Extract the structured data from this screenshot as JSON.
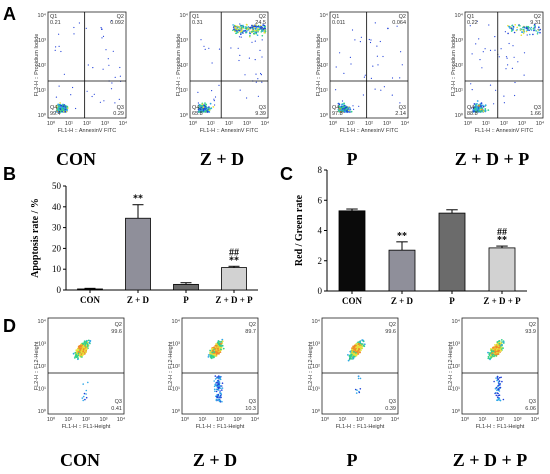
{
  "panel_letters": {
    "a": "A",
    "b": "B",
    "c": "C",
    "d": "D"
  },
  "flow_A": {
    "x_label": "FL1-H :: AnnexinV FITC",
    "y_label": "FL2-H :: Propidium Iodide",
    "axis_ticks": [
      "10⁰",
      "10¹",
      "10²",
      "10³",
      "10⁴"
    ],
    "plots": [
      {
        "group": "CON",
        "q1_label": "Q1",
        "q1": "0.21",
        "q2_label": "Q2",
        "q2": "0.092",
        "q3_label": "Q3",
        "q3": "0.29",
        "q4_label": "Q4",
        "q4": "99.4"
      },
      {
        "group": "Z + D",
        "q1_label": "Q1",
        "q1": "0.31",
        "q2_label": "Q2",
        "q2": "24.5",
        "q3_label": "Q3",
        "q3": "9.39",
        "q4_label": "Q4",
        "q4": "65.8"
      },
      {
        "group": "P",
        "q1_label": "Q1",
        "q1": "0.011",
        "q2_label": "Q2",
        "q2": "0.064",
        "q3_label": "Q3",
        "q3": "2.14",
        "q4_label": "Q4",
        "q4": "97.8"
      },
      {
        "group": "Z + D + P",
        "q1_label": "Q1",
        "q1": "0.22",
        "q2_label": "Q2",
        "q2": "9.31",
        "q3_label": "Q3",
        "q3": "1.66",
        "q4_label": "Q4",
        "q4": "88.8"
      }
    ]
  },
  "flow_D": {
    "x_label": "FL1-H :: FL1-Height",
    "y_label": "FL2-H :: FL2-Height",
    "axis_ticks": [
      "10⁰",
      "10¹",
      "10²",
      "10³",
      "10⁴"
    ],
    "plots": [
      {
        "group": "CON",
        "q2_label": "Q2",
        "q2": "99.6",
        "q3_label": "Q3",
        "q3": "0.41"
      },
      {
        "group": "Z + D",
        "q2_label": "Q2",
        "q2": "89.7",
        "q3_label": "Q3",
        "q3": "10.3"
      },
      {
        "group": "P",
        "q2_label": "Q2",
        "q2": "99.6",
        "q3_label": "Q3",
        "q3": "0.39"
      },
      {
        "group": "Z + D + P",
        "q2_label": "Q2",
        "q2": "93.9",
        "q3_label": "Q3",
        "q3": "6.06"
      }
    ]
  },
  "chart_data": [
    {
      "type": "bar",
      "panel": "B",
      "categories": [
        "CON",
        "Z + D",
        "P",
        "Z + D + P"
      ],
      "values": [
        0.5,
        34.5,
        2.7,
        10.8
      ],
      "errors": [
        0.3,
        6.5,
        0.8,
        0.6
      ],
      "annotations": [
        "",
        "**",
        "",
        "##\n**"
      ],
      "colors": [
        "#0a0a0a",
        "#8f8f9a",
        "#6b6b6b",
        "#d2d2d2"
      ],
      "ylabel": "Apoptosis rate / %",
      "ylim": [
        0,
        50
      ],
      "yticks": [
        0,
        10,
        20,
        30,
        40,
        50
      ]
    },
    {
      "type": "bar",
      "panel": "C",
      "categories": [
        "CON",
        "Z + D",
        "P",
        "Z + D + P"
      ],
      "values": [
        5.3,
        2.7,
        5.15,
        2.85
      ],
      "errors": [
        0.12,
        0.55,
        0.22,
        0.12
      ],
      "annotations": [
        "",
        "**",
        "",
        "##\n**"
      ],
      "colors": [
        "#0a0a0a",
        "#8f8f9a",
        "#6b6b6b",
        "#d2d2d2"
      ],
      "ylabel": "Red / Green rate",
      "ylim": [
        0,
        8
      ],
      "yticks": [
        0,
        2,
        4,
        6,
        8
      ]
    }
  ]
}
